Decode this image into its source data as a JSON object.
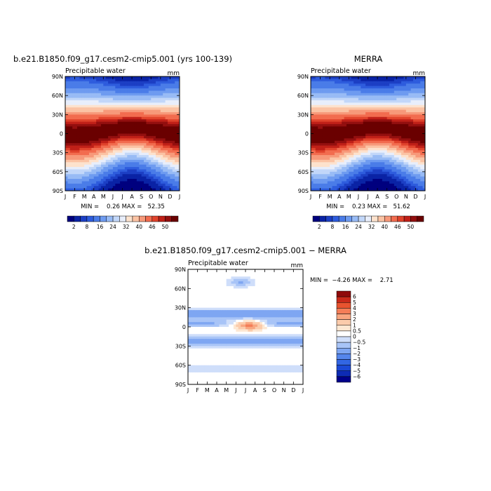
{
  "panels": [
    {
      "title": "b.e21.B1850.f09_g17.cesm2-cmip5.001 (yrs 100-139)",
      "variable": "Precipitable water",
      "units": "mm",
      "stats": "MIN =    0.26 MAX =   52.35"
    },
    {
      "title": "MERRA",
      "variable": "Precipitable water",
      "units": "mm",
      "stats": "MIN =    0.23 MAX =   51.62"
    },
    {
      "title": "b.e21.B1850.f09_g17.cesm2-cmip5.001 − MERRA",
      "variable": "Precipitable water",
      "units": "mm",
      "stats": "MIN =  −4.26 MAX =    2.71"
    }
  ],
  "colorbars": {
    "absolute": {
      "colors": [
        "#00007f",
        "#0a23a5",
        "#1c3fc4",
        "#2e5cdd",
        "#4a7ce8",
        "#6e9bf0",
        "#98bbf5",
        "#c2d7f9",
        "#e8eefb",
        "#fde2cd",
        "#fbc3a4",
        "#f7997a",
        "#f26c4f",
        "#e0432c",
        "#c02018",
        "#930f0f",
        "#6a0000"
      ],
      "labels": [
        "2",
        "8",
        "16",
        "24",
        "32",
        "40",
        "46",
        "50"
      ]
    },
    "difference": {
      "colors": [
        "#00008a",
        "#0d2bb5",
        "#1b49d6",
        "#3266e3",
        "#5586ec",
        "#7ea6f2",
        "#a8c4f7",
        "#cfdefa",
        "#ffffff",
        "#fde7d2",
        "#fbcbab",
        "#f8a680",
        "#f47e58",
        "#e8532f",
        "#c9291a",
        "#8f0a0a"
      ],
      "labels": [
        "6",
        "5",
        "4",
        "3",
        "2",
        "1",
        "0.5",
        "0",
        "−0.5",
        "−1",
        "−2",
        "−3",
        "−4",
        "−5",
        "−6"
      ]
    }
  },
  "chart_data": [
    {
      "type": "heatmap",
      "title": "b.e21.B1850.f09_g17.cesm2-cmip5.001 (yrs 100-139)",
      "subtitle": "Precipitable water",
      "units": "mm",
      "x_ticks": [
        "J",
        "F",
        "M",
        "A",
        "M",
        "J",
        "J",
        "A",
        "S",
        "O",
        "N",
        "D",
        "J"
      ],
      "y_ticks": [
        "90S",
        "60S",
        "30S",
        "0",
        "30N",
        "60N",
        "90N"
      ],
      "ylim": [
        -90,
        90
      ],
      "min": 0.26,
      "max": 52.35,
      "contour_levels": [
        2,
        4,
        6,
        8,
        12,
        16,
        20,
        24,
        28,
        32,
        36,
        40,
        44,
        46,
        48,
        50
      ],
      "description_of_pattern": "peak ~50 mm near 0-10N, maximum in Jul-Sep; minimum near poles"
    },
    {
      "type": "heatmap",
      "title": "MERRA",
      "subtitle": "Precipitable water",
      "units": "mm",
      "x_ticks": [
        "J",
        "F",
        "M",
        "A",
        "M",
        "J",
        "J",
        "A",
        "S",
        "O",
        "N",
        "D",
        "J"
      ],
      "y_ticks": [
        "90S",
        "60S",
        "30S",
        "0",
        "30N",
        "60N",
        "90N"
      ],
      "ylim": [
        -90,
        90
      ],
      "min": 0.23,
      "max": 51.62,
      "contour_levels": [
        2,
        4,
        6,
        8,
        12,
        16,
        20,
        24,
        28,
        32,
        36,
        40,
        44,
        46,
        48,
        50
      ]
    },
    {
      "type": "heatmap",
      "title": "b.e21.B1850.f09_g17.cesm2-cmip5.001 − MERRA",
      "subtitle": "Precipitable water",
      "units": "mm",
      "x_ticks": [
        "J",
        "F",
        "M",
        "A",
        "M",
        "J",
        "J",
        "A",
        "S",
        "O",
        "N",
        "D",
        "J"
      ],
      "y_ticks": [
        "90S",
        "60S",
        "30S",
        "0",
        "30N",
        "60N",
        "90N"
      ],
      "ylim": [
        -90,
        90
      ],
      "min": -4.26,
      "max": 2.71,
      "contour_levels": [
        -6,
        -5,
        -4,
        -3,
        -2,
        -1,
        -0.5,
        0,
        0.5,
        1,
        2,
        3,
        4,
        5,
        6
      ]
    }
  ]
}
